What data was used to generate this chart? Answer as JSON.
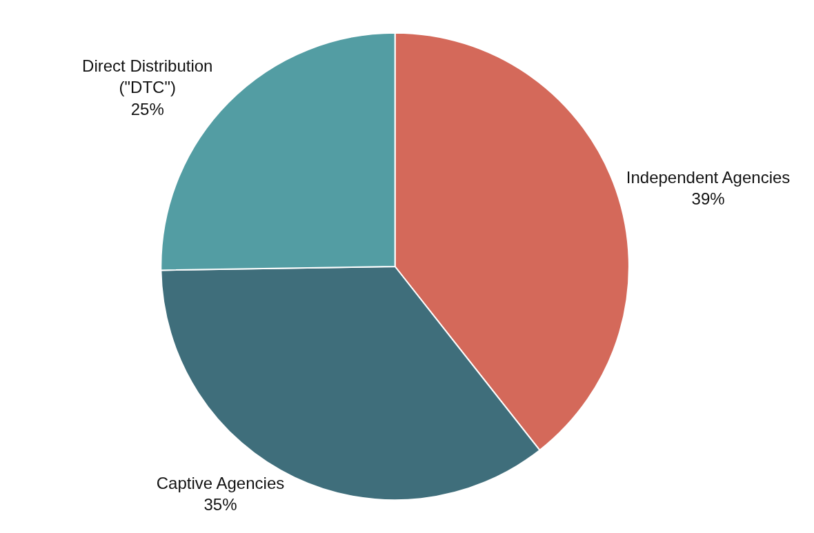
{
  "chart_data": {
    "type": "pie",
    "categories": [
      "Independent Agencies",
      "Captive Agencies",
      "Direct Distribution\n(\"DTC\")"
    ],
    "values": [
      39,
      35,
      25
    ],
    "value_labels": [
      "39%",
      "35%",
      "25%"
    ],
    "colors": [
      "#d4695a",
      "#3f6e7b",
      "#539da3"
    ],
    "legend": false
  }
}
